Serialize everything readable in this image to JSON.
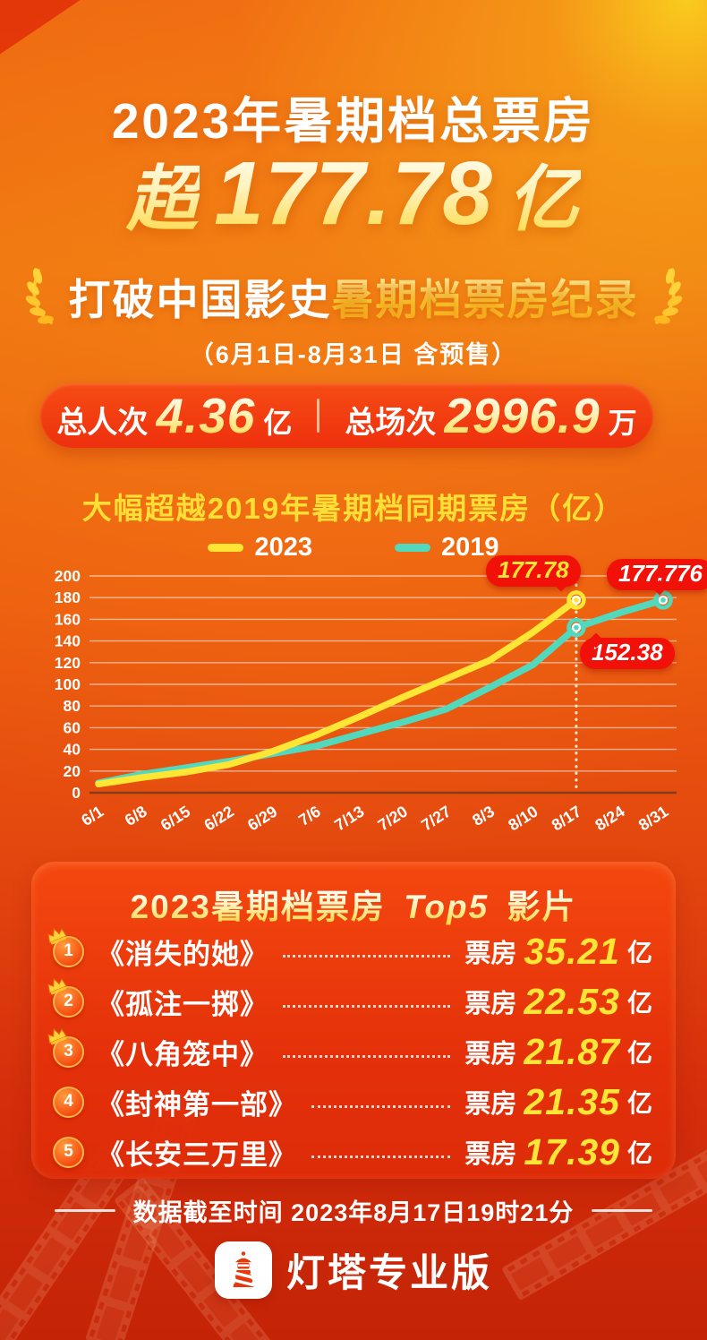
{
  "header": {
    "title": "2023年暑期档总票房",
    "headline_prefix": "超",
    "headline_number": "177.78",
    "headline_unit": "亿",
    "record_white": "打破中国影史",
    "record_gold": "暑期档票房纪录",
    "date_range": "（6月1日-8月31日 含预售）"
  },
  "stats": {
    "left_label": "总人次",
    "left_value": "4.36",
    "left_unit": "亿",
    "right_label": "总场次",
    "right_value": "2996.9",
    "right_unit": "万"
  },
  "chart_data": {
    "type": "line",
    "title": "大幅超越2019年暑期档同期票房（亿）",
    "xlabel": "",
    "ylabel": "亿",
    "x": [
      "6/1",
      "6/8",
      "6/15",
      "6/22",
      "6/29",
      "7/6",
      "7/13",
      "7/20",
      "7/27",
      "8/3",
      "8/10",
      "8/17",
      "8/24",
      "8/31"
    ],
    "ylim": [
      0,
      200
    ],
    "yticks": [
      0,
      20,
      40,
      60,
      80,
      100,
      120,
      140,
      160,
      180,
      200
    ],
    "grid": true,
    "legend_position": "top",
    "series": [
      {
        "name": "2019",
        "color": "#52d9bd",
        "values": [
          9,
          17,
          23,
          29,
          36,
          43,
          54,
          65,
          77,
          97,
          118,
          152.38,
          166,
          177.776
        ]
      },
      {
        "name": "2023",
        "color": "#ffe534",
        "values": [
          8,
          14,
          19,
          26,
          38,
          53,
          70,
          88,
          105,
          122,
          148,
          177.78,
          null,
          null
        ]
      }
    ],
    "vline_x": "8/17",
    "annotations": [
      {
        "label": "177.78",
        "series": "2023",
        "x": "8/17",
        "value": 177.78,
        "text_color": "#ffe431"
      },
      {
        "label": "177.776",
        "series": "2019",
        "x": "8/31",
        "value": 177.776,
        "text_color": "#ffffff"
      },
      {
        "label": "152.38",
        "series": "2019",
        "x": "8/17",
        "value": 152.38,
        "text_color": "#ffffff"
      }
    ]
  },
  "top5": {
    "title_prefix": "2023暑期档票房",
    "title_top": "Top5",
    "title_suffix": "影片",
    "box_office_label": "票房",
    "unit": "亿",
    "items": [
      {
        "rank": "1",
        "title": "《消失的她》",
        "value": "35.21"
      },
      {
        "rank": "2",
        "title": "《孤注一掷》",
        "value": "22.53"
      },
      {
        "rank": "3",
        "title": "《八角笼中》",
        "value": "21.87"
      },
      {
        "rank": "4",
        "title": "《封神第一部》",
        "value": "21.35"
      },
      {
        "rank": "5",
        "title": "《长安三万里》",
        "value": "17.39"
      }
    ]
  },
  "footer": {
    "data_cutoff": "数据截至时间 2023年8月17日19时21分"
  },
  "brand": {
    "name": "灯塔专业版"
  },
  "colors": {
    "badge_red": "#f11109",
    "yellow_line": "#ffe534",
    "teal_line": "#52d9bd",
    "gold_text": "#ffdf35"
  }
}
